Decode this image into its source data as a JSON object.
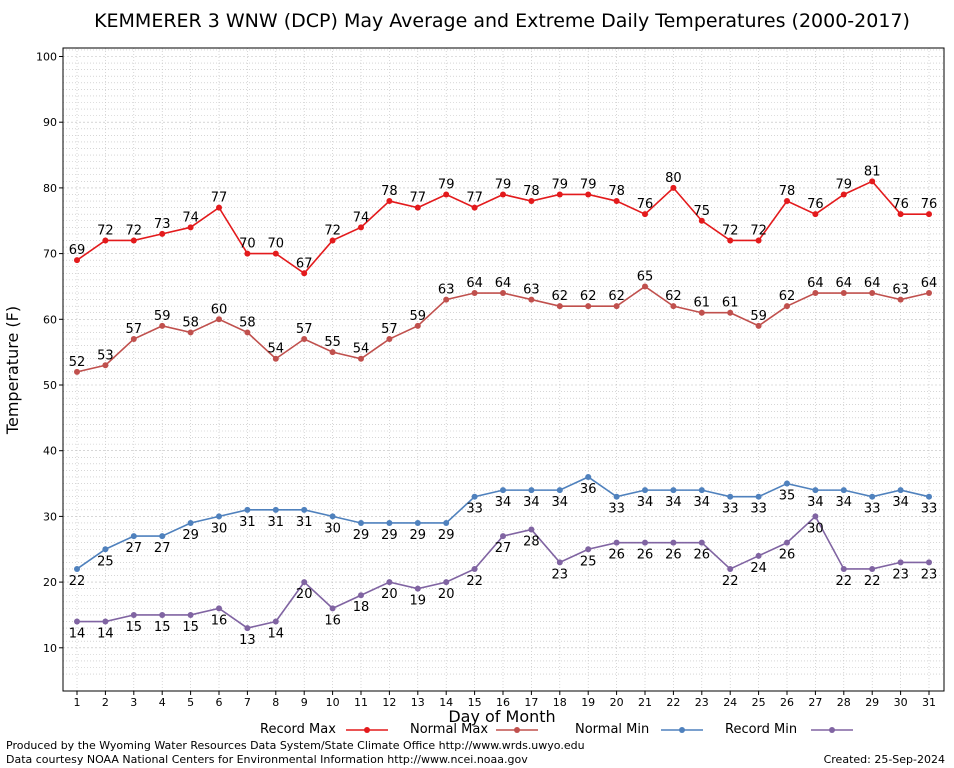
{
  "chart_data": {
    "type": "line",
    "title": "KEMMERER 3 WNW (DCP) May Average and Extreme Daily Temperatures (2000-2017)",
    "xlabel": "Day of Month",
    "ylabel": "Temperature (F)",
    "ylim": [
      5,
      101
    ],
    "yticks": [
      10,
      20,
      30,
      40,
      50,
      60,
      70,
      80,
      90,
      100
    ],
    "xlim": [
      1,
      31
    ],
    "grid": true,
    "legend_position": "bottom",
    "x": [
      1,
      2,
      3,
      4,
      5,
      6,
      7,
      8,
      9,
      10,
      11,
      12,
      13,
      14,
      15,
      16,
      17,
      18,
      19,
      20,
      21,
      22,
      23,
      24,
      25,
      26,
      27,
      28,
      29,
      30,
      31
    ],
    "series": [
      {
        "name": "Record Max",
        "color": "#e31a1c",
        "values": [
          69,
          72,
          72,
          73,
          74,
          77,
          70,
          70,
          67,
          72,
          74,
          78,
          77,
          79,
          77,
          79,
          78,
          79,
          79,
          78,
          76,
          80,
          75,
          72,
          72,
          78,
          76,
          79,
          81,
          76,
          76
        ]
      },
      {
        "name": "Normal Max",
        "color": "#c0504d",
        "values": [
          52,
          53,
          57,
          59,
          58,
          60,
          58,
          54,
          57,
          55,
          54,
          57,
          59,
          63,
          64,
          64,
          63,
          62,
          62,
          62,
          65,
          62,
          61,
          61,
          59,
          62,
          64,
          64,
          64,
          63,
          64
        ]
      },
      {
        "name": "Normal Min",
        "color": "#4f81bd",
        "values": [
          22,
          25,
          27,
          27,
          29,
          30,
          31,
          31,
          31,
          30,
          29,
          29,
          29,
          29,
          33,
          34,
          34,
          34,
          36,
          33,
          34,
          34,
          34,
          33,
          33,
          35,
          34,
          34,
          33,
          34,
          33
        ]
      },
      {
        "name": "Record Min",
        "color": "#8064a2",
        "values": [
          14,
          14,
          15,
          15,
          15,
          16,
          13,
          14,
          20,
          16,
          18,
          20,
          19,
          20,
          22,
          27,
          28,
          23,
          25,
          26,
          26,
          26,
          26,
          22,
          24,
          26,
          30,
          22,
          22,
          23,
          23
        ]
      }
    ]
  },
  "footer": {
    "produced_by": "Produced by the Wyoming Water Resources Data System/State Climate Office http://www.wrds.uwyo.edu",
    "courtesy": "Data courtesy NOAA National Centers for Environmental Information http://www.ncei.noaa.gov",
    "created": "Created: 25-Sep-2024"
  }
}
